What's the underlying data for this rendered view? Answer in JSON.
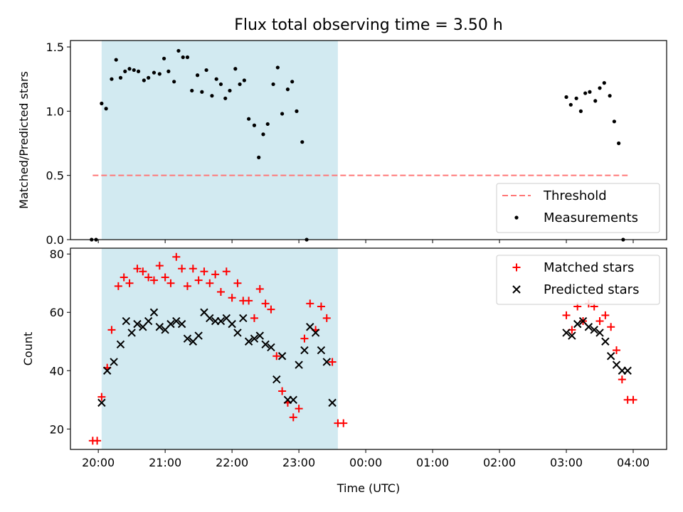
{
  "figure": {
    "title": "Flux total observing time = 3.50 h"
  },
  "chart_data": [
    {
      "type": "scatter",
      "ylabel": "Matched/Predicted stars",
      "ylim": [
        0,
        1.55
      ],
      "yticks": [
        0.0,
        0.5,
        1.0,
        1.5
      ],
      "ytick_labels": [
        "0.0",
        "0.5",
        "1.0",
        "1.5"
      ],
      "xlim": [
        "19:35",
        "04:30"
      ],
      "shaded_interval": {
        "start": "20:03",
        "end": "23:35",
        "color": "#add8e6"
      },
      "threshold": {
        "name": "Threshold",
        "value": 0.5,
        "x_start": "19:55",
        "x_end": "03:55",
        "color": "#ff7777"
      },
      "legend": {
        "position": "lower right",
        "entries": [
          "Threshold",
          "Measurements"
        ]
      },
      "series": [
        {
          "name": "Measurements",
          "color": "#000000",
          "marker": "dot",
          "points": [
            [
              "19:54",
              0.0
            ],
            [
              "19:58",
              0.0
            ],
            [
              "20:03",
              1.06
            ],
            [
              "20:07",
              1.02
            ],
            [
              "20:12",
              1.25
            ],
            [
              "20:16",
              1.4
            ],
            [
              "20:20",
              1.26
            ],
            [
              "20:24",
              1.31
            ],
            [
              "20:28",
              1.33
            ],
            [
              "20:32",
              1.32
            ],
            [
              "20:36",
              1.31
            ],
            [
              "20:41",
              1.24
            ],
            [
              "20:45",
              1.26
            ],
            [
              "20:50",
              1.3
            ],
            [
              "20:55",
              1.29
            ],
            [
              "20:59",
              1.41
            ],
            [
              "21:03",
              1.31
            ],
            [
              "21:08",
              1.23
            ],
            [
              "21:12",
              1.47
            ],
            [
              "21:16",
              1.42
            ],
            [
              "21:20",
              1.42
            ],
            [
              "21:24",
              1.16
            ],
            [
              "21:29",
              1.28
            ],
            [
              "21:33",
              1.15
            ],
            [
              "21:37",
              1.32
            ],
            [
              "21:42",
              1.12
            ],
            [
              "21:46",
              1.25
            ],
            [
              "21:50",
              1.21
            ],
            [
              "21:54",
              1.1
            ],
            [
              "21:58",
              1.16
            ],
            [
              "22:03",
              1.33
            ],
            [
              "22:07",
              1.21
            ],
            [
              "22:11",
              1.24
            ],
            [
              "22:15",
              0.94
            ],
            [
              "22:20",
              0.89
            ],
            [
              "22:24",
              0.64
            ],
            [
              "22:28",
              0.82
            ],
            [
              "22:32",
              0.9
            ],
            [
              "22:37",
              1.21
            ],
            [
              "22:41",
              1.34
            ],
            [
              "22:45",
              0.98
            ],
            [
              "22:50",
              1.17
            ],
            [
              "22:54",
              1.23
            ],
            [
              "22:58",
              1.0
            ],
            [
              "23:03",
              0.76
            ],
            [
              "23:07",
              0.0
            ],
            [
              "03:00",
              1.11
            ],
            [
              "03:04",
              1.05
            ],
            [
              "03:09",
              1.1
            ],
            [
              "03:13",
              1.0
            ],
            [
              "03:17",
              1.14
            ],
            [
              "03:21",
              1.15
            ],
            [
              "03:26",
              1.08
            ],
            [
              "03:30",
              1.18
            ],
            [
              "03:34",
              1.22
            ],
            [
              "03:39",
              1.12
            ],
            [
              "03:43",
              0.92
            ],
            [
              "03:47",
              0.75
            ],
            [
              "03:51",
              0.0
            ]
          ]
        }
      ]
    },
    {
      "type": "scatter",
      "xlabel": "Time (UTC)",
      "ylabel": "Count",
      "ylim": [
        13,
        82
      ],
      "yticks": [
        20,
        40,
        60,
        80
      ],
      "ytick_labels": [
        "20",
        "40",
        "60",
        "80"
      ],
      "xlim": [
        "19:35",
        "04:30"
      ],
      "xticks": [
        "20:00",
        "21:00",
        "22:00",
        "23:00",
        "00:00",
        "01:00",
        "02:00",
        "03:00",
        "04:00"
      ],
      "xtick_labels": [
        "20:00",
        "21:00",
        "22:00",
        "23:00",
        "00:00",
        "01:00",
        "02:00",
        "03:00",
        "04:00"
      ],
      "shaded_interval": {
        "start": "20:03",
        "end": "23:35",
        "color": "#add8e6"
      },
      "legend": {
        "position": "upper right",
        "entries": [
          "Matched stars",
          "Predicted stars"
        ]
      },
      "series": [
        {
          "name": "Matched stars",
          "color": "#ff0000",
          "marker": "plus",
          "points": [
            [
              "19:55",
              16
            ],
            [
              "19:59",
              16
            ],
            [
              "20:03",
              31
            ],
            [
              "20:08",
              41
            ],
            [
              "20:12",
              54
            ],
            [
              "20:18",
              69
            ],
            [
              "20:23",
              72
            ],
            [
              "20:28",
              70
            ],
            [
              "20:35",
              75
            ],
            [
              "20:40",
              74
            ],
            [
              "20:45",
              72
            ],
            [
              "20:50",
              71
            ],
            [
              "20:55",
              76
            ],
            [
              "21:00",
              72
            ],
            [
              "21:05",
              70
            ],
            [
              "21:10",
              79
            ],
            [
              "21:15",
              75
            ],
            [
              "21:20",
              69
            ],
            [
              "21:25",
              75
            ],
            [
              "21:30",
              71
            ],
            [
              "21:35",
              74
            ],
            [
              "21:40",
              70
            ],
            [
              "21:45",
              73
            ],
            [
              "21:50",
              67
            ],
            [
              "21:55",
              74
            ],
            [
              "22:00",
              65
            ],
            [
              "22:05",
              70
            ],
            [
              "22:10",
              64
            ],
            [
              "22:15",
              64
            ],
            [
              "22:20",
              58
            ],
            [
              "22:25",
              68
            ],
            [
              "22:30",
              63
            ],
            [
              "22:35",
              61
            ],
            [
              "22:40",
              45
            ],
            [
              "22:45",
              33
            ],
            [
              "22:50",
              29
            ],
            [
              "22:55",
              24
            ],
            [
              "23:00",
              27
            ],
            [
              "23:05",
              51
            ],
            [
              "23:10",
              63
            ],
            [
              "23:15",
              54
            ],
            [
              "23:20",
              62
            ],
            [
              "23:25",
              58
            ],
            [
              "23:30",
              43
            ],
            [
              "23:35",
              22
            ],
            [
              "23:40",
              22
            ],
            [
              "03:00",
              59
            ],
            [
              "03:05",
              54
            ],
            [
              "03:10",
              62
            ],
            [
              "03:15",
              57
            ],
            [
              "03:20",
              63
            ],
            [
              "03:25",
              62
            ],
            [
              "03:30",
              57
            ],
            [
              "03:35",
              59
            ],
            [
              "03:40",
              55
            ],
            [
              "03:45",
              47
            ],
            [
              "03:50",
              37
            ],
            [
              "03:55",
              30
            ],
            [
              "04:00",
              30
            ]
          ]
        },
        {
          "name": "Predicted stars",
          "color": "#000000",
          "marker": "x",
          "points": [
            [
              "20:03",
              29
            ],
            [
              "20:08",
              40
            ],
            [
              "20:14",
              43
            ],
            [
              "20:20",
              49
            ],
            [
              "20:25",
              57
            ],
            [
              "20:30",
              53
            ],
            [
              "20:35",
              56
            ],
            [
              "20:40",
              55
            ],
            [
              "20:45",
              57
            ],
            [
              "20:50",
              60
            ],
            [
              "20:55",
              55
            ],
            [
              "21:00",
              54
            ],
            [
              "21:05",
              56
            ],
            [
              "21:10",
              57
            ],
            [
              "21:15",
              56
            ],
            [
              "21:20",
              51
            ],
            [
              "21:25",
              50
            ],
            [
              "21:30",
              52
            ],
            [
              "21:35",
              60
            ],
            [
              "21:40",
              58
            ],
            [
              "21:45",
              57
            ],
            [
              "21:50",
              57
            ],
            [
              "21:55",
              58
            ],
            [
              "22:00",
              56
            ],
            [
              "22:05",
              53
            ],
            [
              "22:10",
              58
            ],
            [
              "22:15",
              50
            ],
            [
              "22:20",
              51
            ],
            [
              "22:25",
              52
            ],
            [
              "22:30",
              49
            ],
            [
              "22:35",
              48
            ],
            [
              "22:40",
              37
            ],
            [
              "22:45",
              45
            ],
            [
              "22:50",
              30
            ],
            [
              "22:55",
              30
            ],
            [
              "23:00",
              42
            ],
            [
              "23:05",
              47
            ],
            [
              "23:10",
              55
            ],
            [
              "23:15",
              53
            ],
            [
              "23:20",
              47
            ],
            [
              "23:25",
              43
            ],
            [
              "23:30",
              29
            ],
            [
              "03:00",
              53
            ],
            [
              "03:05",
              52
            ],
            [
              "03:10",
              56
            ],
            [
              "03:15",
              57
            ],
            [
              "03:20",
              55
            ],
            [
              "03:25",
              54
            ],
            [
              "03:30",
              53
            ],
            [
              "03:35",
              50
            ],
            [
              "03:40",
              45
            ],
            [
              "03:45",
              42
            ],
            [
              "03:50",
              40
            ],
            [
              "03:55",
              40
            ]
          ]
        }
      ]
    }
  ]
}
